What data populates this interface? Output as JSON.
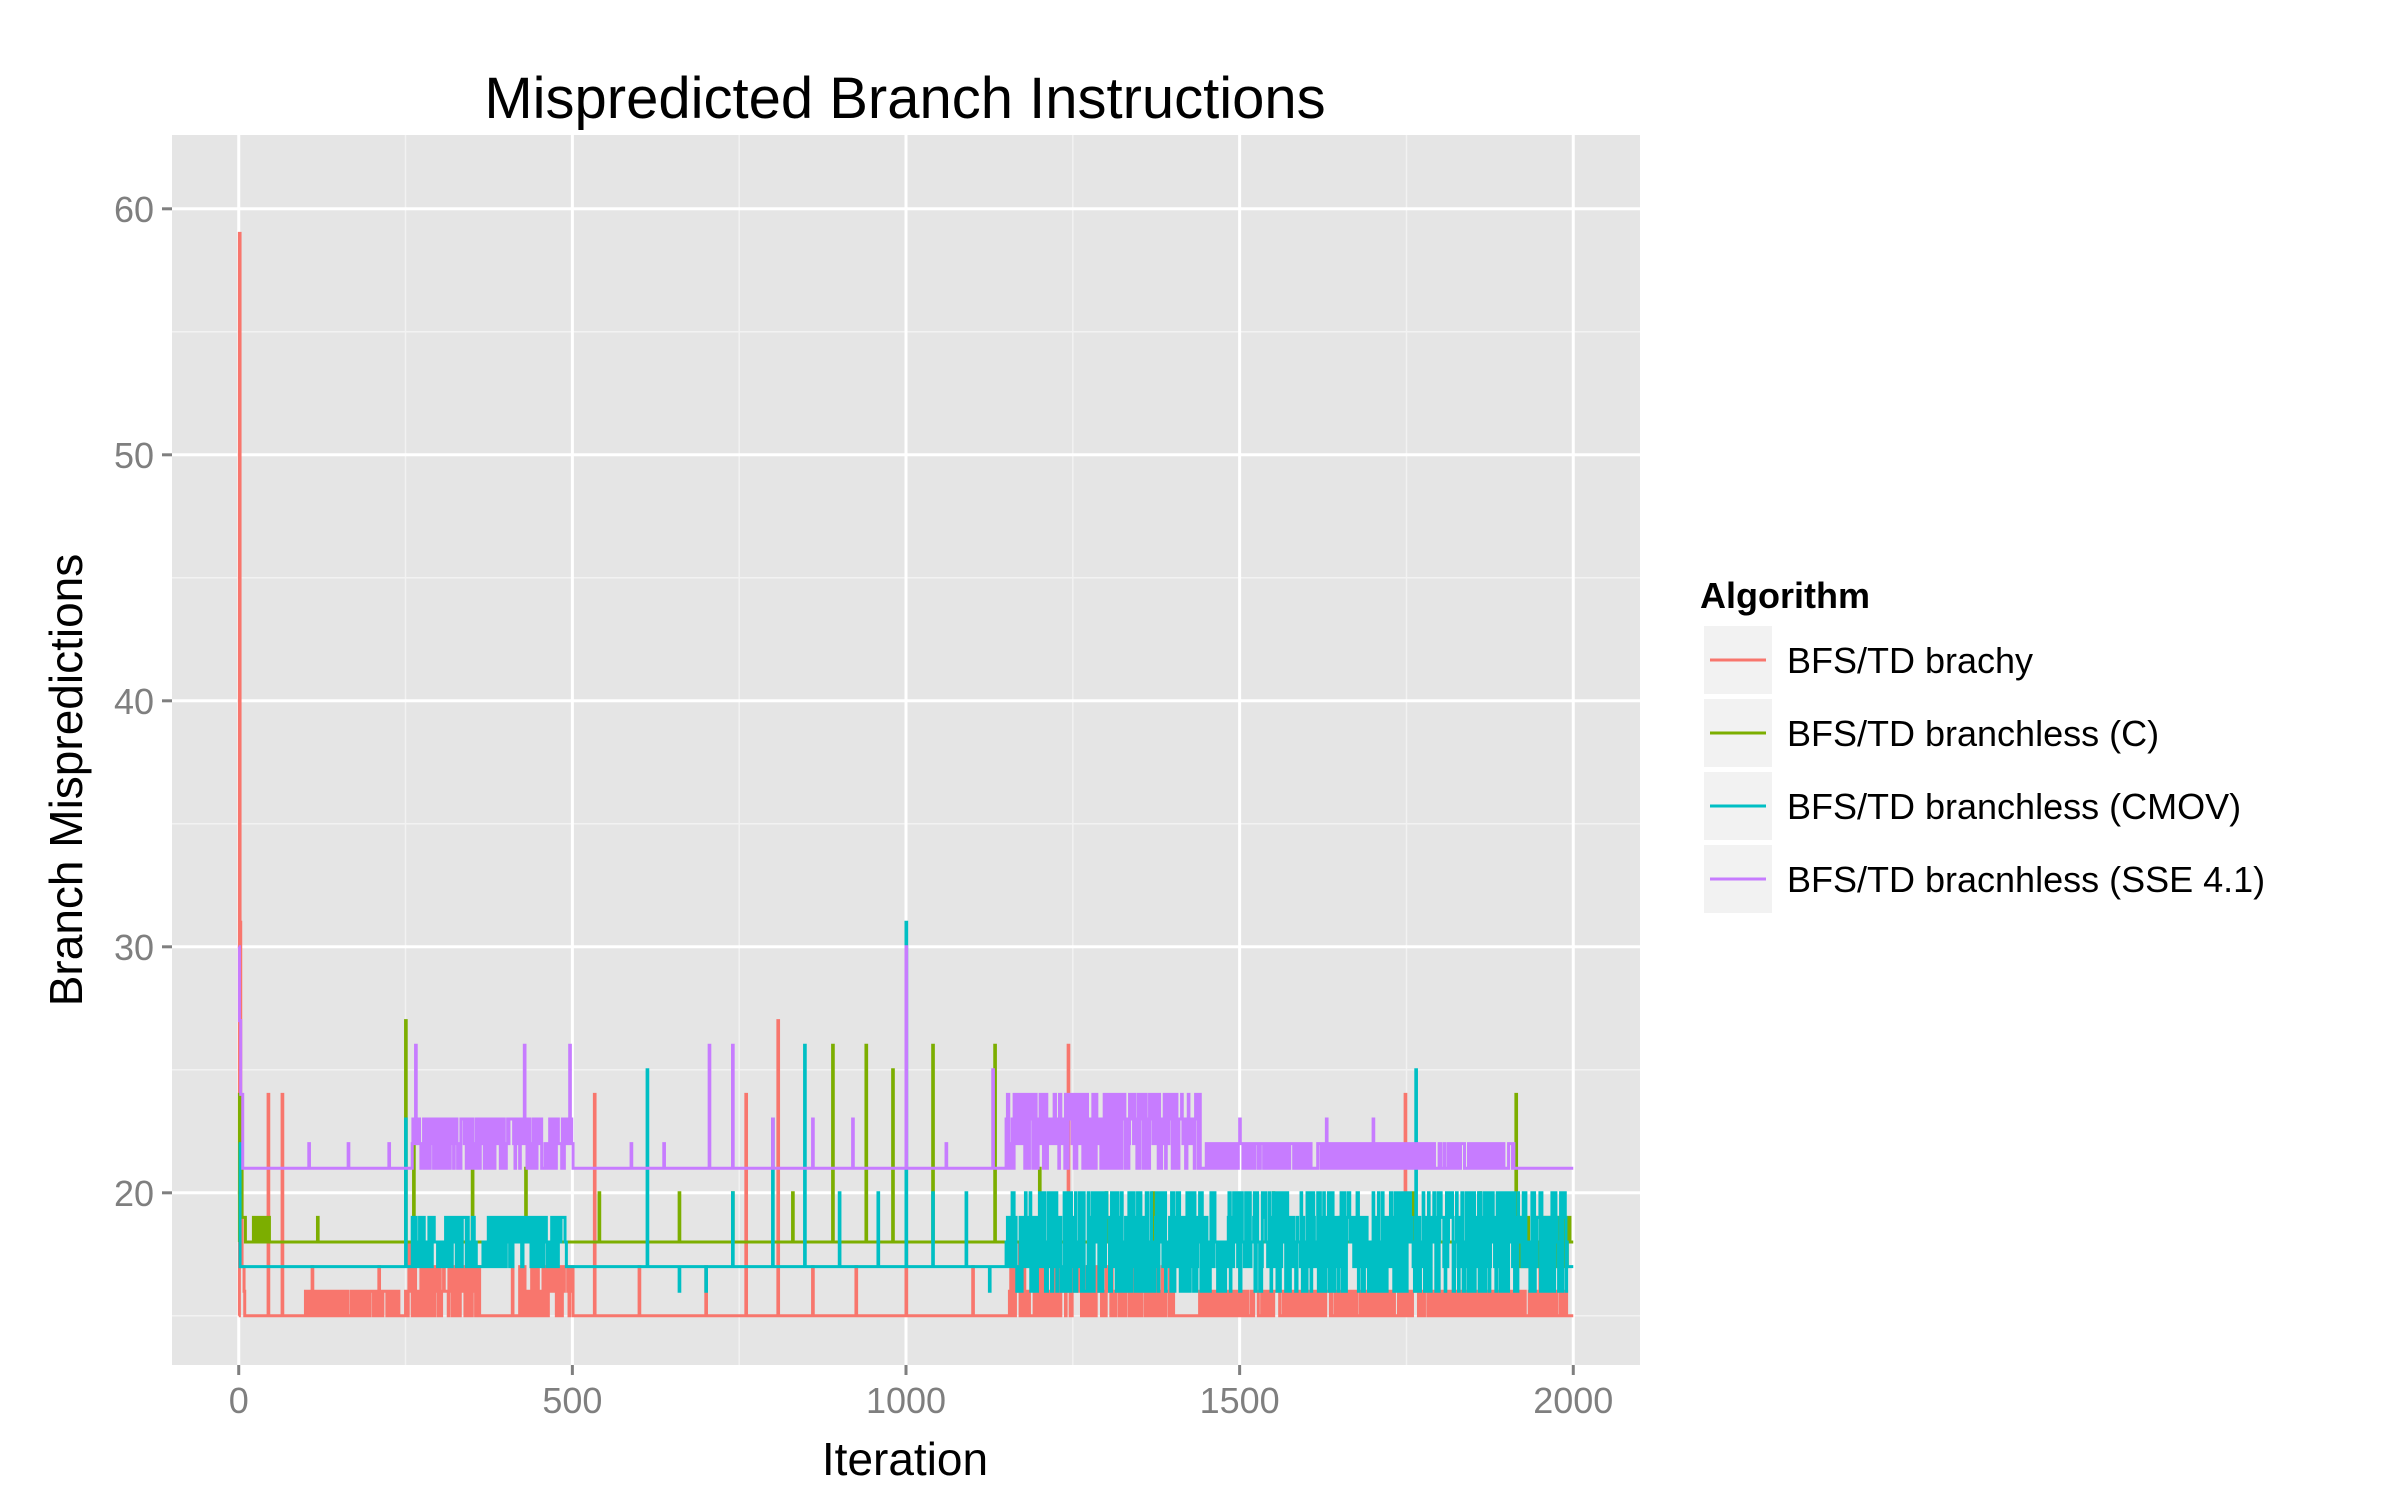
{
  "chart_data": {
    "type": "line",
    "title": "Mispredicted Branch Instructions",
    "xlabel": "Iteration",
    "ylabel": "Branch Mispredictions",
    "xlim": [
      -100,
      2100
    ],
    "ylim": [
      13,
      63
    ],
    "x_ticks": [
      0,
      500,
      1000,
      1500,
      2000
    ],
    "y_ticks": [
      20,
      30,
      40,
      50,
      60
    ],
    "x_tick_labels": [
      "0",
      "500",
      "1000",
      "1500",
      "2000"
    ],
    "y_tick_labels": [
      "20",
      "30",
      "40",
      "50",
      "60"
    ],
    "grid": true,
    "legend": {
      "title": "Algorithm",
      "placement": "right"
    },
    "series": [
      {
        "name": "BFS/TD brachy",
        "color": "#F8766D",
        "baseline": 15,
        "initial": [
          [
            0,
            15
          ],
          [
            1,
            59
          ],
          [
            2,
            31
          ],
          [
            3,
            23
          ],
          [
            5,
            17
          ],
          [
            8,
            16
          ]
        ],
        "spikes": [
          [
            44,
            24
          ],
          [
            65,
            24
          ],
          [
            110,
            17
          ],
          [
            210,
            17
          ],
          [
            255,
            18
          ],
          [
            300,
            17
          ],
          [
            360,
            17
          ],
          [
            410,
            17
          ],
          [
            470,
            17
          ],
          [
            533,
            24
          ],
          [
            600,
            17
          ],
          [
            700,
            17
          ],
          [
            760,
            24
          ],
          [
            808,
            27
          ],
          [
            860,
            17
          ],
          [
            925,
            17
          ],
          [
            1000,
            18
          ],
          [
            1100,
            17
          ],
          [
            1170,
            18
          ],
          [
            1243,
            26
          ],
          [
            1300,
            17
          ],
          [
            1395,
            17
          ],
          [
            1500,
            17
          ],
          [
            1600,
            17
          ],
          [
            1700,
            17
          ],
          [
            1748,
            24
          ],
          [
            1850,
            17
          ],
          [
            1950,
            17
          ]
        ],
        "noisy": [
          [
            100,
            240,
            15,
            16
          ],
          [
            250,
            360,
            15,
            17
          ],
          [
            420,
            500,
            15,
            17
          ],
          [
            1155,
            1400,
            15,
            17
          ],
          [
            1440,
            1990,
            15,
            16
          ]
        ]
      },
      {
        "name": "BFS/TD branchless (C)",
        "color": "#7CAE00",
        "baseline": 18,
        "initial": [
          [
            0,
            18
          ],
          [
            1,
            24
          ],
          [
            2,
            21
          ],
          [
            5,
            19
          ],
          [
            10,
            18
          ]
        ],
        "spikes": [
          [
            40,
            19
          ],
          [
            118,
            19
          ],
          [
            250,
            27
          ],
          [
            262,
            22
          ],
          [
            350,
            21
          ],
          [
            430,
            21
          ],
          [
            540,
            20
          ],
          [
            660,
            20
          ],
          [
            740,
            20
          ],
          [
            830,
            20
          ],
          [
            890,
            26
          ],
          [
            940,
            26
          ],
          [
            980,
            25
          ],
          [
            1040,
            26
          ],
          [
            1133,
            26
          ],
          [
            1200,
            21
          ],
          [
            1300,
            20
          ],
          [
            1370,
            20
          ],
          [
            1460,
            19
          ],
          [
            1550,
            20
          ],
          [
            1650,
            19
          ],
          [
            1760,
            20
          ],
          [
            1860,
            20
          ],
          [
            1914,
            24
          ],
          [
            1975,
            19
          ]
        ],
        "noisy": [
          [
            20,
            45,
            18,
            19
          ],
          [
            1920,
            1995,
            17,
            19
          ]
        ]
      },
      {
        "name": "BFS/TD branchless (CMOV)",
        "color": "#00BFC4",
        "baseline": 17,
        "initial": [
          [
            0,
            22
          ],
          [
            2,
            17
          ]
        ],
        "spikes": [
          [
            250,
            23
          ],
          [
            612,
            25
          ],
          [
            660,
            16
          ],
          [
            700,
            16
          ],
          [
            740,
            20
          ],
          [
            800,
            23
          ],
          [
            848,
            26
          ],
          [
            900,
            20
          ],
          [
            958,
            20
          ],
          [
            1000,
            31
          ],
          [
            1040,
            20
          ],
          [
            1090,
            20
          ],
          [
            1125,
            16
          ],
          [
            1764,
            25
          ],
          [
            1850,
            16
          ]
        ],
        "noisy": [
          [
            260,
            355,
            17,
            19
          ],
          [
            365,
            490,
            17,
            19
          ],
          [
            1150,
            1990,
            16,
            20
          ]
        ]
      },
      {
        "name": "BFS/TD bracnhless (SSE 4.1)",
        "color": "#C77CFF",
        "baseline": 21,
        "initial": [
          [
            0,
            30
          ],
          [
            1,
            27
          ],
          [
            3,
            24
          ],
          [
            6,
            21
          ]
        ],
        "spikes": [
          [
            105,
            22
          ],
          [
            164,
            22
          ],
          [
            225,
            22
          ],
          [
            265,
            26
          ],
          [
            300,
            23
          ],
          [
            428,
            26
          ],
          [
            496,
            26
          ],
          [
            588,
            22
          ],
          [
            637,
            22
          ],
          [
            705,
            26
          ],
          [
            740,
            26
          ],
          [
            800,
            23
          ],
          [
            860,
            23
          ],
          [
            920,
            23
          ],
          [
            1000,
            30
          ],
          [
            1060,
            22
          ],
          [
            1130,
            25
          ],
          [
            1210,
            24
          ],
          [
            1280,
            24
          ],
          [
            1350,
            24
          ],
          [
            1430,
            23
          ],
          [
            1500,
            23
          ],
          [
            1630,
            23
          ],
          [
            1700,
            23
          ],
          [
            1800,
            22
          ],
          [
            1870,
            22
          ]
        ],
        "noisy": [
          [
            260,
            500,
            21,
            23
          ],
          [
            1150,
            1440,
            21,
            24
          ],
          [
            1440,
            1910,
            21,
            22
          ]
        ]
      }
    ]
  }
}
